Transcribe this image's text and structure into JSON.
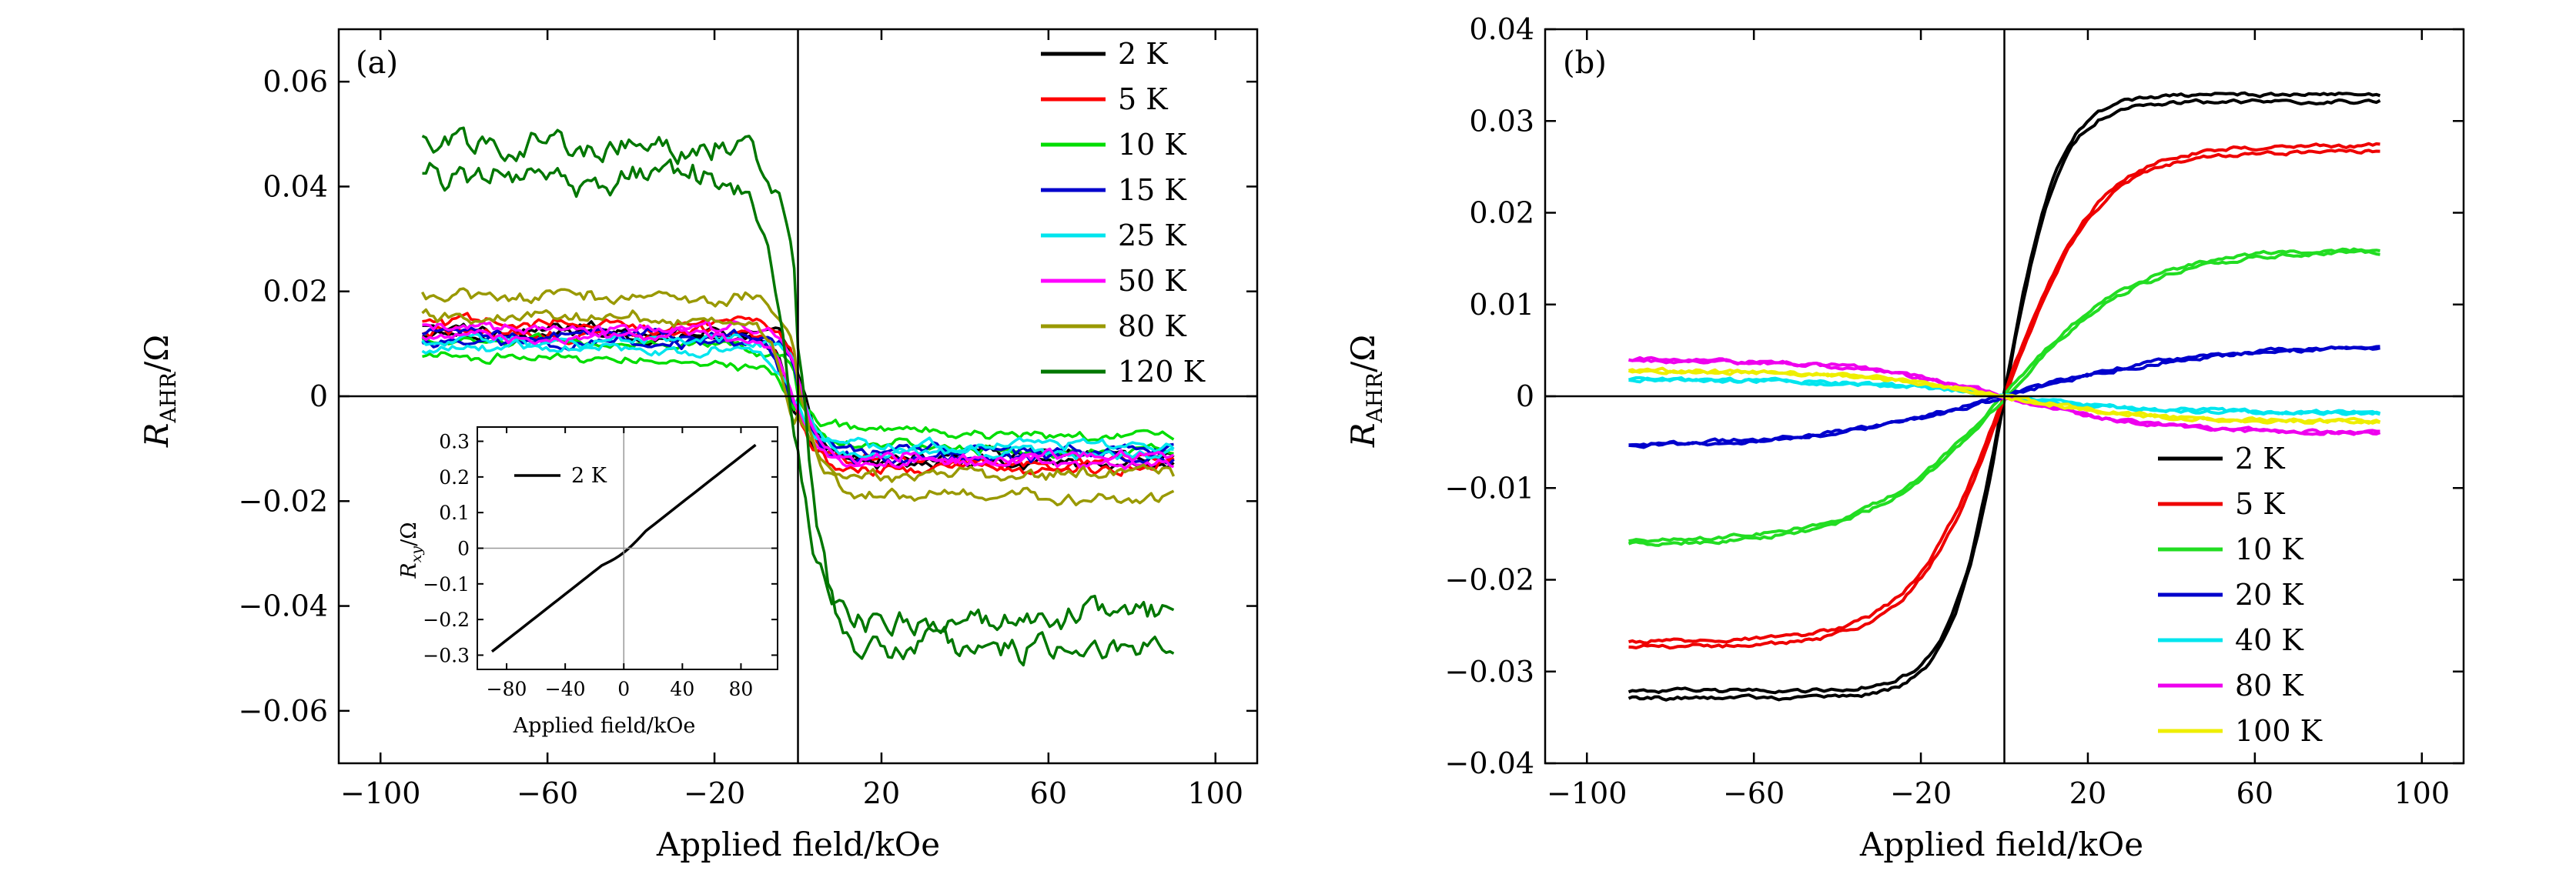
{
  "chart_data": [
    {
      "panel": "(a)",
      "type": "line",
      "xlabel": "Applied field/kOe",
      "ylabel": "R_AHR/Ω",
      "ylabel_main": "R",
      "ylabel_sub": "AHR",
      "ylabel_unit": "/Ω",
      "xlim": [
        -110,
        110
      ],
      "ylim": [
        -0.07,
        0.07
      ],
      "xticks": [
        -100,
        -60,
        -20,
        20,
        60,
        100
      ],
      "xtick_labels": [
        "−100",
        "−60",
        "−20",
        "20",
        "60",
        "100"
      ],
      "yticks": [
        -0.06,
        -0.04,
        -0.02,
        0,
        0.02,
        0.04,
        0.06
      ],
      "ytick_labels": [
        "−0.06",
        "−0.04",
        "−0.02",
        "0",
        "0.02",
        "0.04",
        "0.06"
      ],
      "legend_position": "top-right",
      "series": [
        {
          "name": "2 K",
          "color": "#000000",
          "sat": 0.012,
          "width": 5,
          "sep": 0.0015
        },
        {
          "name": "5 K",
          "color": "#ff0000",
          "sat": 0.013,
          "width": 5,
          "sep": 0.0015
        },
        {
          "name": "10 K",
          "color": "#00dd00",
          "sat": 0.007,
          "width": 5,
          "sep": 0.003
        },
        {
          "name": "15 K",
          "color": "#0000cc",
          "sat": 0.011,
          "width": 5,
          "sep": 0.0015
        },
        {
          "name": "25 K",
          "color": "#00e5ee",
          "sat": 0.01,
          "width": 5,
          "sep": 0.0015
        },
        {
          "name": "50 K",
          "color": "#ff00ff",
          "sat": 0.012,
          "width": 5,
          "sep": 0.0015
        },
        {
          "name": "80 K",
          "color": "#999900",
          "sat": 0.017,
          "width": 6,
          "sep": 0.004
        },
        {
          "name": "120 K",
          "color": "#007700",
          "sat": 0.045,
          "width": 6,
          "sep": 0.006
        }
      ],
      "inset": {
        "xlabel": "Applied field/kOe",
        "ylabel": "R_xy/Ω",
        "ylabel_main": "R",
        "ylabel_sub": "xy",
        "ylabel_unit": "/Ω",
        "xlim": [
          -100,
          105
        ],
        "ylim": [
          -0.34,
          0.34
        ],
        "xticks": [
          -80,
          -40,
          0,
          40,
          80
        ],
        "xtick_labels": [
          "−80",
          "−40",
          "0",
          "40",
          "80"
        ],
        "yticks": [
          -0.3,
          -0.2,
          -0.1,
          0,
          0.1,
          0.2,
          0.3
        ],
        "ytick_labels": [
          "−0.3",
          "−0.2",
          "−0.1",
          "0",
          "0.1",
          "0.2",
          "0.3"
        ],
        "series": [
          {
            "name": "2 K",
            "color": "#000000",
            "x": [
              -90,
              90
            ],
            "y": [
              -0.29,
              0.29
            ]
          }
        ]
      }
    },
    {
      "panel": "(b)",
      "type": "line",
      "xlabel": "Applied field/kOe",
      "ylabel": "R_AHR/Ω",
      "ylabel_main": "R",
      "ylabel_sub": "AHR",
      "ylabel_unit": "/Ω",
      "xlim": [
        -110,
        110
      ],
      "ylim": [
        -0.04,
        0.04
      ],
      "xticks": [
        -100,
        -60,
        -20,
        20,
        60,
        100
      ],
      "xtick_labels": [
        "−100",
        "−60",
        "−20",
        "20",
        "60",
        "100"
      ],
      "yticks": [
        -0.04,
        -0.03,
        -0.02,
        -0.01,
        0,
        0.01,
        0.02,
        0.03,
        0.04
      ],
      "ytick_labels": [
        "−0.04",
        "−0.03",
        "−0.02",
        "−0.01",
        "0",
        "0.01",
        "0.02",
        "0.03",
        "0.04"
      ],
      "legend_position": "bottom-right",
      "series": [
        {
          "name": "2 K",
          "color": "#000000",
          "sat": 0.0325,
          "width": 13
        },
        {
          "name": "5 K",
          "color": "#ee0000",
          "sat": 0.027,
          "width": 22
        },
        {
          "name": "10 K",
          "color": "#22dd22",
          "sat": 0.016,
          "width": 32
        },
        {
          "name": "20 K",
          "color": "#0000cc",
          "sat": 0.0055,
          "width": 45
        },
        {
          "name": "40 K",
          "color": "#00e5ee",
          "sat": -0.0018,
          "width": 35
        },
        {
          "name": "80 K",
          "color": "#ee00ee",
          "sat": -0.004,
          "width": 35
        },
        {
          "name": "100 K",
          "color": "#eeee00",
          "sat": -0.0028,
          "width": 35
        }
      ]
    }
  ]
}
